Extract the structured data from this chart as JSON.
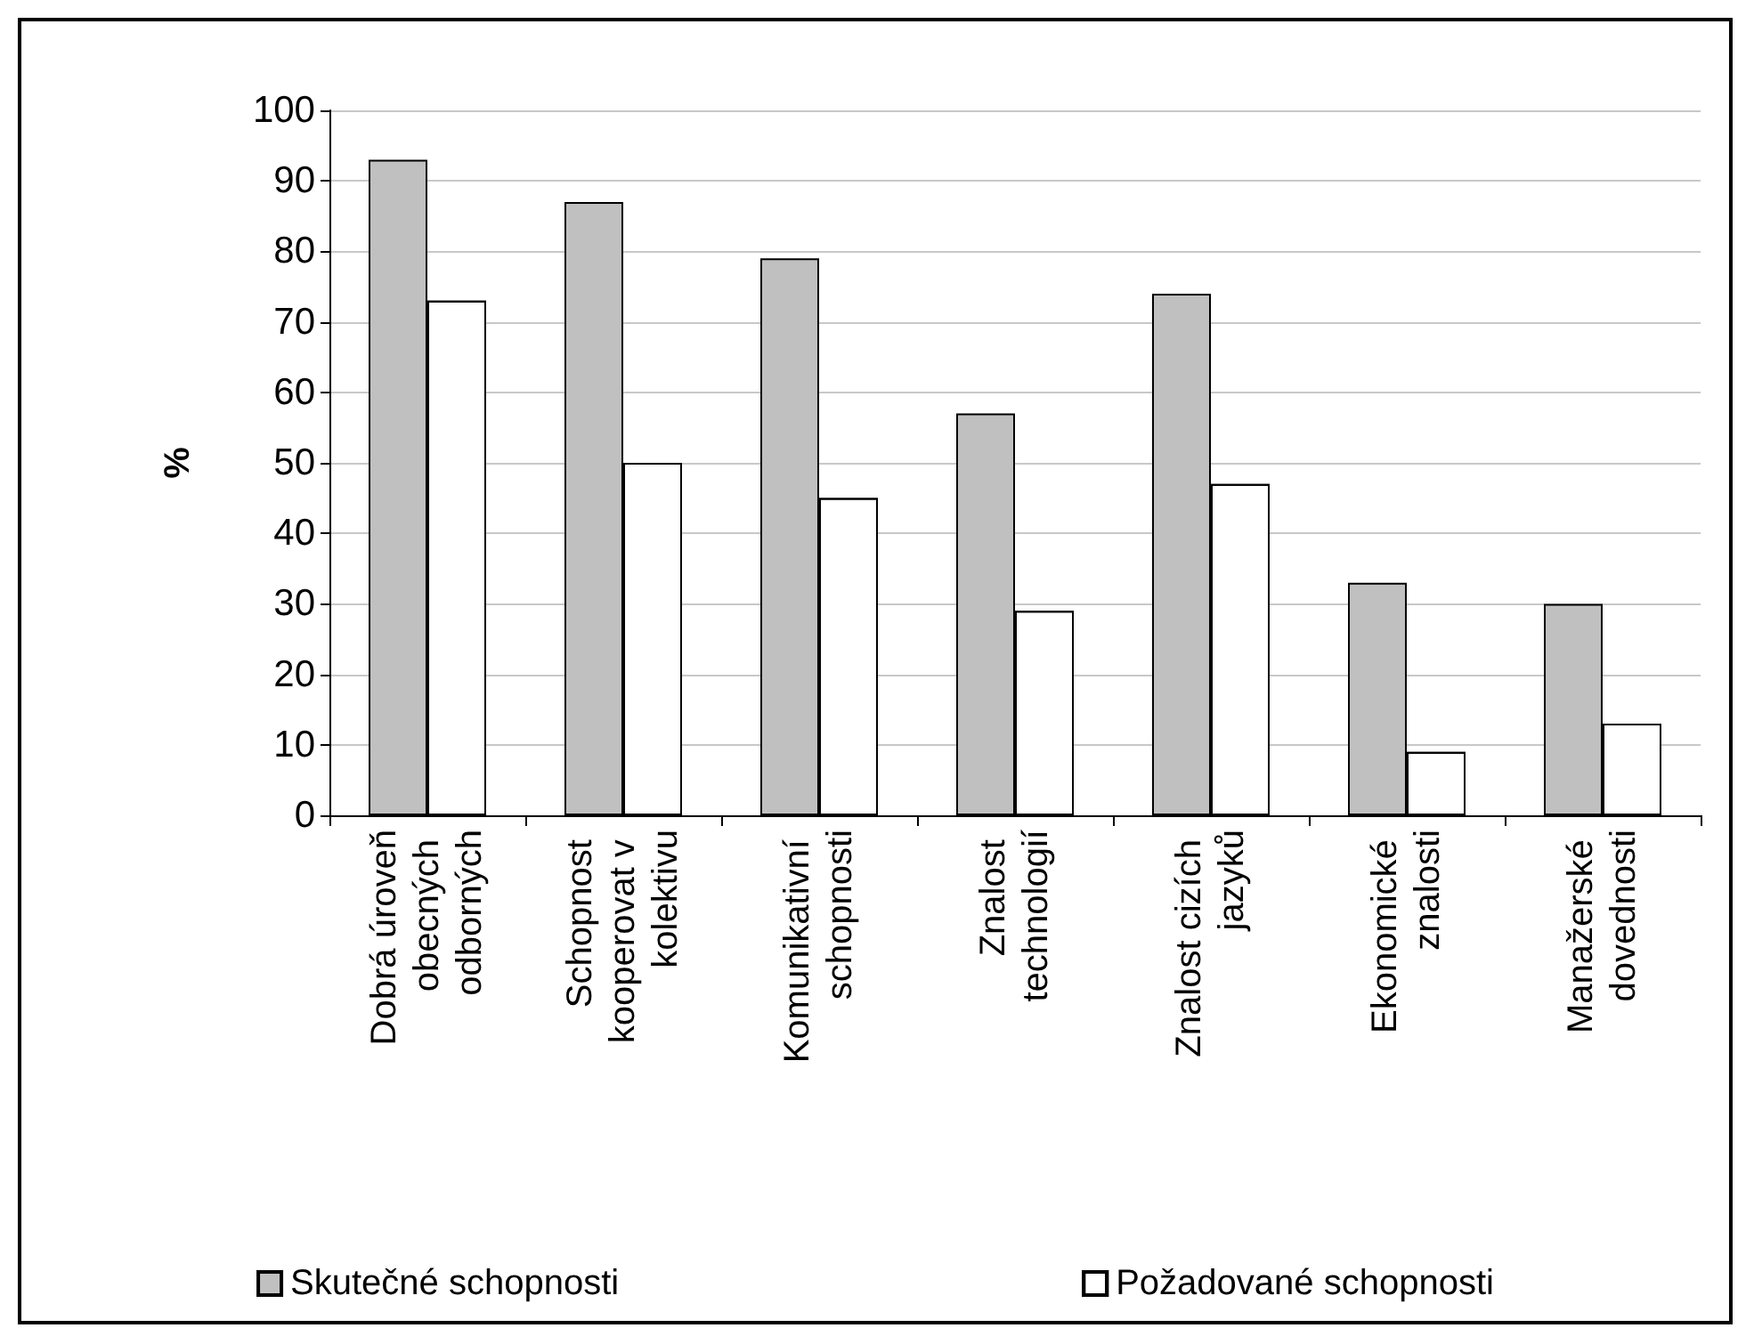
{
  "chart_data": {
    "type": "bar",
    "ylabel": "%",
    "categories": [
      "Dobrá úroveň obecných odborných",
      "Schopnost kooperovat v kolektivu",
      "Komunikativní schopnosti",
      "Znalost technologií",
      "Znalost cizích jazyků",
      "Ekonomické znalosti",
      "Manažerské dovednosti"
    ],
    "series": [
      {
        "name": "Skutečné schopnosti",
        "color": "#c0c0c0",
        "values": [
          93,
          87,
          79,
          57,
          74,
          33,
          30
        ]
      },
      {
        "name": "Požadované schopnosti",
        "color": "#ffffff",
        "values": [
          73,
          50,
          45,
          29,
          47,
          9,
          13
        ]
      }
    ],
    "ylim": [
      0,
      100
    ],
    "yticks": [
      0,
      10,
      20,
      30,
      40,
      50,
      60,
      70,
      80,
      90,
      100
    ],
    "grid": "y",
    "legend": "bottom"
  }
}
